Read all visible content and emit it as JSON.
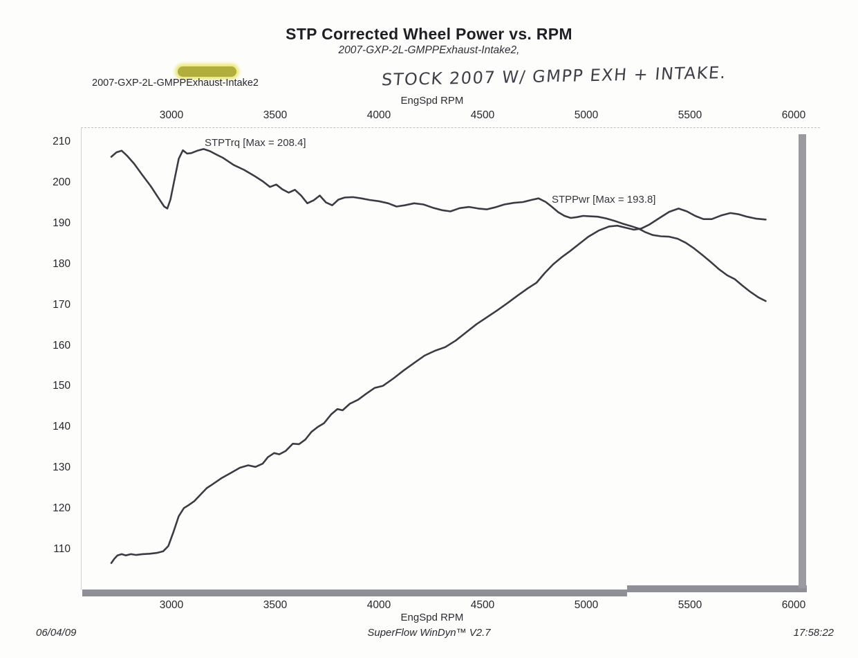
{
  "title": "STP Corrected Wheel Power vs. RPM",
  "subtitle": "2007-GXP-2L-GMPPExhaust-Intake2,",
  "file_label": "2007-GXP-2L-GMPPExhaust-Intake2",
  "handwriting": "STOCK 2007  W/ GMPP  EXH + INTAKE.",
  "highlight_color": "#b2ae3e",
  "footer": {
    "date": "06/04/09",
    "program": "SuperFlow WinDyn™ V2.7",
    "time": "17:58:22"
  },
  "chart_data": {
    "type": "line",
    "title": "STP Corrected Wheel Power vs. RPM",
    "xlabel": "EngSpd  RPM",
    "ylabel": "",
    "x_ticks": [
      3000,
      3500,
      4000,
      4500,
      5000,
      5500,
      6000
    ],
    "y_ticks": [
      210,
      200,
      190,
      180,
      170,
      160,
      150,
      140,
      130,
      120,
      110
    ],
    "xlim": [
      2700,
      6100
    ],
    "ylim": [
      100,
      214
    ],
    "grid": false,
    "line_color": "#3b3b43",
    "series": [
      {
        "name": "STPTrq",
        "label": "STPTrq [Max = 208.4]",
        "max": 208.4,
        "points": [
          [
            2710,
            206.5
          ],
          [
            2735,
            207.6
          ],
          [
            2760,
            208.0
          ],
          [
            2785,
            206.8
          ],
          [
            2820,
            204.8
          ],
          [
            2860,
            202.0
          ],
          [
            2900,
            199.3
          ],
          [
            2940,
            196.2
          ],
          [
            2965,
            194.3
          ],
          [
            2980,
            193.8
          ],
          [
            2995,
            196.0
          ],
          [
            3015,
            201.0
          ],
          [
            3035,
            206.0
          ],
          [
            3055,
            208.1
          ],
          [
            3075,
            207.3
          ],
          [
            3095,
            207.4
          ],
          [
            3125,
            208.0
          ],
          [
            3155,
            208.4
          ],
          [
            3185,
            207.9
          ],
          [
            3215,
            207.1
          ],
          [
            3250,
            206.2
          ],
          [
            3300,
            204.5
          ],
          [
            3350,
            203.3
          ],
          [
            3400,
            201.8
          ],
          [
            3440,
            200.5
          ],
          [
            3475,
            199.1
          ],
          [
            3505,
            199.7
          ],
          [
            3535,
            198.5
          ],
          [
            3565,
            197.7
          ],
          [
            3595,
            198.4
          ],
          [
            3625,
            197.0
          ],
          [
            3655,
            195.1
          ],
          [
            3685,
            195.8
          ],
          [
            3715,
            197.0
          ],
          [
            3745,
            195.3
          ],
          [
            3775,
            194.6
          ],
          [
            3805,
            196.0
          ],
          [
            3835,
            196.5
          ],
          [
            3875,
            196.6
          ],
          [
            3915,
            196.3
          ],
          [
            3955,
            195.9
          ],
          [
            4000,
            195.6
          ],
          [
            4045,
            195.1
          ],
          [
            4085,
            194.3
          ],
          [
            4125,
            194.6
          ],
          [
            4170,
            195.1
          ],
          [
            4215,
            194.8
          ],
          [
            4260,
            194.0
          ],
          [
            4305,
            193.4
          ],
          [
            4345,
            193.1
          ],
          [
            4390,
            193.9
          ],
          [
            4435,
            194.2
          ],
          [
            4480,
            193.8
          ],
          [
            4520,
            193.6
          ],
          [
            4560,
            194.1
          ],
          [
            4605,
            194.8
          ],
          [
            4650,
            195.2
          ],
          [
            4695,
            195.4
          ],
          [
            4735,
            195.9
          ],
          [
            4770,
            196.3
          ],
          [
            4805,
            195.4
          ],
          [
            4835,
            194.2
          ],
          [
            4865,
            192.9
          ],
          [
            4895,
            192.0
          ],
          [
            4925,
            191.5
          ],
          [
            4955,
            191.7
          ],
          [
            4985,
            192.0
          ],
          [
            5015,
            191.9
          ],
          [
            5055,
            191.8
          ],
          [
            5095,
            191.4
          ],
          [
            5135,
            190.8
          ],
          [
            5175,
            190.1
          ],
          [
            5215,
            189.5
          ],
          [
            5252,
            188.9
          ],
          [
            5285,
            188.0
          ],
          [
            5320,
            187.3
          ],
          [
            5360,
            187.0
          ],
          [
            5400,
            186.9
          ],
          [
            5440,
            186.4
          ],
          [
            5480,
            185.4
          ],
          [
            5520,
            184.0
          ],
          [
            5560,
            182.4
          ],
          [
            5600,
            180.7
          ],
          [
            5640,
            178.9
          ],
          [
            5680,
            177.4
          ],
          [
            5715,
            176.5
          ],
          [
            5750,
            175.0
          ],
          [
            5790,
            173.4
          ],
          [
            5830,
            172.0
          ],
          [
            5865,
            171.1
          ]
        ]
      },
      {
        "name": "STPPwr",
        "label": "STPPwr [Max = 193.8]",
        "max": 193.8,
        "points": [
          [
            2710,
            106.8
          ],
          [
            2725,
            107.9
          ],
          [
            2740,
            108.7
          ],
          [
            2760,
            109.0
          ],
          [
            2780,
            108.7
          ],
          [
            2805,
            109.0
          ],
          [
            2830,
            108.8
          ],
          [
            2860,
            109.0
          ],
          [
            2895,
            109.1
          ],
          [
            2930,
            109.3
          ],
          [
            2960,
            109.7
          ],
          [
            2985,
            111.0
          ],
          [
            3010,
            114.5
          ],
          [
            3035,
            118.3
          ],
          [
            3060,
            120.3
          ],
          [
            3085,
            121.1
          ],
          [
            3110,
            122.0
          ],
          [
            3140,
            123.6
          ],
          [
            3170,
            125.2
          ],
          [
            3200,
            126.2
          ],
          [
            3240,
            127.6
          ],
          [
            3285,
            128.9
          ],
          [
            3330,
            130.2
          ],
          [
            3370,
            130.8
          ],
          [
            3405,
            130.4
          ],
          [
            3440,
            131.2
          ],
          [
            3465,
            132.8
          ],
          [
            3495,
            133.8
          ],
          [
            3520,
            133.5
          ],
          [
            3550,
            134.3
          ],
          [
            3585,
            136.1
          ],
          [
            3615,
            136.0
          ],
          [
            3645,
            137.1
          ],
          [
            3675,
            139.0
          ],
          [
            3705,
            140.2
          ],
          [
            3735,
            141.1
          ],
          [
            3770,
            143.3
          ],
          [
            3800,
            144.6
          ],
          [
            3825,
            144.3
          ],
          [
            3860,
            145.9
          ],
          [
            3900,
            146.9
          ],
          [
            3940,
            148.4
          ],
          [
            3980,
            149.8
          ],
          [
            4020,
            150.3
          ],
          [
            4070,
            152.1
          ],
          [
            4120,
            154.1
          ],
          [
            4170,
            155.9
          ],
          [
            4220,
            157.7
          ],
          [
            4270,
            158.9
          ],
          [
            4320,
            159.8
          ],
          [
            4370,
            161.4
          ],
          [
            4420,
            163.4
          ],
          [
            4470,
            165.4
          ],
          [
            4520,
            167.1
          ],
          [
            4570,
            168.8
          ],
          [
            4620,
            170.6
          ],
          [
            4670,
            172.5
          ],
          [
            4720,
            174.3
          ],
          [
            4760,
            175.6
          ],
          [
            4800,
            178.0
          ],
          [
            4840,
            180.1
          ],
          [
            4880,
            181.8
          ],
          [
            4920,
            183.3
          ],
          [
            4970,
            185.3
          ],
          [
            5010,
            186.9
          ],
          [
            5060,
            188.4
          ],
          [
            5110,
            189.4
          ],
          [
            5150,
            189.6
          ],
          [
            5190,
            189.1
          ],
          [
            5230,
            188.6
          ],
          [
            5265,
            188.9
          ],
          [
            5305,
            189.9
          ],
          [
            5350,
            191.4
          ],
          [
            5400,
            193.0
          ],
          [
            5445,
            193.8
          ],
          [
            5485,
            193.1
          ],
          [
            5525,
            192.0
          ],
          [
            5565,
            191.2
          ],
          [
            5605,
            191.2
          ],
          [
            5650,
            192.1
          ],
          [
            5695,
            192.7
          ],
          [
            5735,
            192.4
          ],
          [
            5775,
            191.8
          ],
          [
            5820,
            191.3
          ],
          [
            5865,
            191.1
          ]
        ]
      }
    ]
  }
}
